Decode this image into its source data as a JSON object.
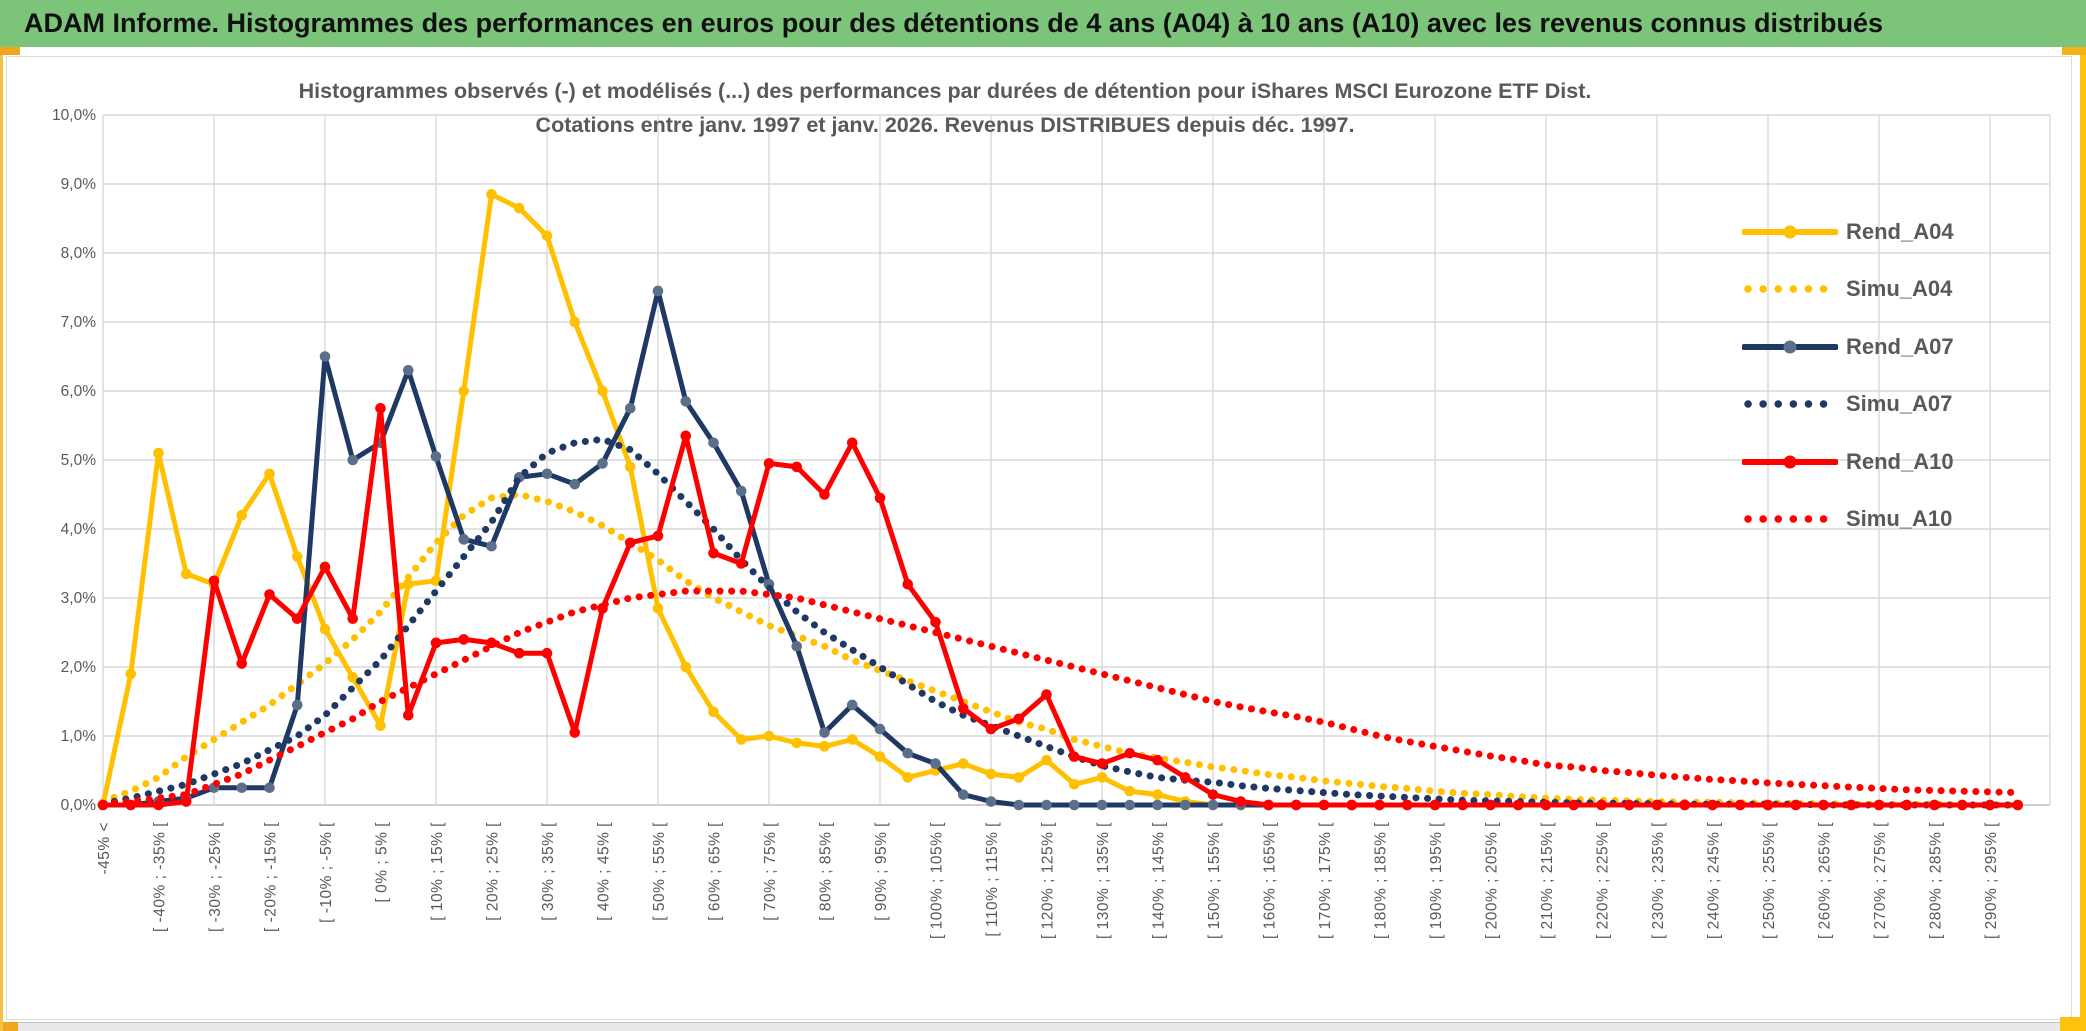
{
  "header": {
    "title": "ADAM Informe. Histogrammes des performances en euros pour des détentions de 4 ans (A04) à 10 ans (A10) avec les revenus connus distribués"
  },
  "colors": {
    "header_green": "#7cc47a",
    "accent_orange": "#efa51f",
    "accent_gold": "#fdc10e",
    "grid": "#d9d9d9",
    "axis_text": "#595959",
    "series_gold": "#FFC000",
    "series_navy": "#1F3864",
    "series_navy_marker": "#5b6e8a",
    "series_red": "#FF0000"
  },
  "chart_data": {
    "type": "line",
    "title_line1": "Histogrammes observés (-) et modélisés (...) des performances par durées de détention pour iShares MSCI Eurozone ETF Dist.",
    "title_line2": "Cotations entre janv. 1997 et janv. 2026. Revenus DISTRIBUES depuis déc. 1997.",
    "ylabel": "",
    "xlabel": "",
    "ylim": [
      0,
      10
    ],
    "grid": true,
    "legend_position": "right-inside",
    "y_tick_labels": [
      "10,0%",
      "9,0%",
      "8,0%",
      "7,0%",
      "6,0%",
      "5,0%",
      "4,0%",
      "3,0%",
      "2,0%",
      "1,0%",
      "0,0%"
    ],
    "categories": [
      "-45% <",
      "",
      "[ -40% ; -35% [",
      "",
      "[ -30% ; -25% [",
      "",
      "[ -20% ; -15% [",
      "",
      "[ -10% ; -5% [",
      "",
      "[ 0% ; 5% [",
      "",
      "[ 10% ; 15% [",
      "",
      "[ 20% ; 25% [",
      "",
      "[ 30% ; 35% [",
      "",
      "[ 40% ; 45% [",
      "",
      "[ 50% ; 55% [",
      "",
      "[ 60% ; 65% [",
      "",
      "[ 70% ; 75% [",
      "",
      "[ 80% ; 85% [",
      "",
      "[ 90% ; 95% [",
      "",
      "[ 100% ; 105% [",
      "",
      "[ 110% ; 115% [",
      "",
      "[ 120% ; 125% [",
      "",
      "[ 130% ; 135% [",
      "",
      "[ 140% ; 145% [",
      "",
      "[ 150% ; 155% [",
      "",
      "[ 160% ; 165% [",
      "",
      "[ 170% ; 175% [",
      "",
      "[ 180% ; 185% [",
      "",
      "[ 190% ; 195% [",
      "",
      "[ 200% ; 205% [",
      "",
      "[ 210% ; 215% [",
      "",
      "[ 220% ; 225% [",
      "",
      "[ 230% ; 235% [",
      "",
      "[ 240% ; 245% [",
      "",
      "[ 250% ; 255% [",
      "",
      "[ 260% ; 265% [",
      "",
      "[ 270% ; 275% [",
      "",
      "[ 280% ; 285% [",
      "",
      "[ 290% ; 295% [",
      ""
    ],
    "series": [
      {
        "name": "Rend_A04",
        "color": "#FFC000",
        "style": "solid",
        "marker": true,
        "marker_color": "#FFC000",
        "values": [
          0,
          1.9,
          5.1,
          3.35,
          3.2,
          4.2,
          4.8,
          3.6,
          2.55,
          1.85,
          1.15,
          3.2,
          3.25,
          6.0,
          8.85,
          8.65,
          8.25,
          7.0,
          6.0,
          4.9,
          2.85,
          2.0,
          1.35,
          0.95,
          1.0,
          0.9,
          0.85,
          0.95,
          0.7,
          0.4,
          0.5,
          0.6,
          0.45,
          0.4,
          0.65,
          0.3,
          0.4,
          0.2,
          0.15,
          0.05,
          0,
          0,
          0,
          0,
          0,
          0,
          0,
          0,
          0,
          0,
          0,
          0,
          0,
          0,
          0,
          0,
          0,
          0,
          0,
          0,
          0,
          0,
          0,
          0,
          0,
          0,
          0,
          0,
          0,
          0
        ]
      },
      {
        "name": "Simu_A04",
        "color": "#FFC000",
        "style": "dotted",
        "marker": false,
        "marker_color": "#FFC000",
        "values": [
          0.05,
          0.2,
          0.4,
          0.7,
          0.95,
          1.2,
          1.45,
          1.75,
          2.05,
          2.4,
          2.8,
          3.3,
          3.8,
          4.2,
          4.45,
          4.5,
          4.4,
          4.25,
          4.05,
          3.8,
          3.55,
          3.25,
          3.0,
          2.8,
          2.6,
          2.45,
          2.3,
          2.1,
          1.95,
          1.8,
          1.65,
          1.5,
          1.35,
          1.2,
          1.1,
          0.95,
          0.85,
          0.75,
          0.68,
          0.62,
          0.55,
          0.5,
          0.44,
          0.4,
          0.35,
          0.31,
          0.27,
          0.24,
          0.2,
          0.17,
          0.15,
          0.12,
          0.1,
          0.08,
          0.07,
          0.06,
          0.05,
          0.04,
          0.04,
          0.03,
          0.03,
          0.02,
          0.02,
          0.01,
          0.01,
          0.01,
          0.01,
          0,
          0,
          0
        ]
      },
      {
        "name": "Rend_A07",
        "color": "#1F3864",
        "style": "solid",
        "marker": true,
        "marker_color": "#5b6e8a",
        "values": [
          0,
          0,
          0.05,
          0.1,
          0.25,
          0.25,
          0.25,
          1.45,
          6.5,
          5.0,
          5.25,
          6.3,
          5.05,
          3.85,
          3.75,
          4.75,
          4.8,
          4.65,
          4.95,
          5.75,
          7.45,
          5.85,
          5.25,
          4.55,
          3.2,
          2.3,
          1.05,
          1.45,
          1.1,
          0.75,
          0.6,
          0.15,
          0.05,
          0,
          0,
          0,
          0,
          0,
          0,
          0,
          0,
          0,
          0,
          0,
          0,
          0,
          0,
          0,
          0,
          0,
          0,
          0,
          0,
          0,
          0,
          0,
          0,
          0,
          0,
          0,
          0,
          0,
          0,
          0,
          0,
          0,
          0,
          0,
          0,
          0
        ]
      },
      {
        "name": "Simu_A07",
        "color": "#1F3864",
        "style": "dotted",
        "marker": false,
        "marker_color": "#1F3864",
        "values": [
          0.02,
          0.1,
          0.2,
          0.3,
          0.45,
          0.6,
          0.8,
          1.0,
          1.3,
          1.7,
          2.1,
          2.6,
          3.1,
          3.6,
          4.1,
          4.75,
          5.1,
          5.25,
          5.3,
          5.15,
          4.8,
          4.4,
          4.0,
          3.55,
          3.15,
          2.8,
          2.5,
          2.25,
          2.0,
          1.75,
          1.5,
          1.3,
          1.15,
          1.0,
          0.85,
          0.7,
          0.57,
          0.48,
          0.4,
          0.36,
          0.33,
          0.28,
          0.24,
          0.21,
          0.18,
          0.15,
          0.13,
          0.11,
          0.09,
          0.07,
          0.06,
          0.05,
          0.04,
          0.03,
          0.03,
          0.02,
          0.02,
          0.01,
          0.01,
          0.01,
          0.01,
          0.01,
          0,
          0,
          0,
          0,
          0,
          0,
          0,
          0
        ]
      },
      {
        "name": "Rend_A10",
        "color": "#FF0000",
        "style": "solid",
        "marker": true,
        "marker_color": "#FF0000",
        "values": [
          0,
          0,
          0,
          0.05,
          3.25,
          2.05,
          3.05,
          2.7,
          3.45,
          2.7,
          5.75,
          1.3,
          2.35,
          2.4,
          2.35,
          2.2,
          2.2,
          1.05,
          2.85,
          3.8,
          3.9,
          5.35,
          3.65,
          3.5,
          4.95,
          4.9,
          4.5,
          5.25,
          4.45,
          3.2,
          2.65,
          1.4,
          1.1,
          1.25,
          1.6,
          0.7,
          0.6,
          0.75,
          0.65,
          0.4,
          0.15,
          0.05,
          0,
          0,
          0,
          0,
          0,
          0,
          0,
          0,
          0,
          0,
          0,
          0,
          0,
          0,
          0,
          0,
          0,
          0,
          0,
          0,
          0,
          0,
          0,
          0,
          0,
          0,
          0,
          0
        ]
      },
      {
        "name": "Simu_A10",
        "color": "#FF0000",
        "style": "dotted",
        "marker": false,
        "marker_color": "#FF0000",
        "values": [
          0.02,
          0.05,
          0.1,
          0.15,
          0.3,
          0.45,
          0.65,
          0.85,
          1.05,
          1.25,
          1.5,
          1.7,
          1.9,
          2.1,
          2.3,
          2.5,
          2.65,
          2.8,
          2.9,
          3.0,
          3.05,
          3.1,
          3.1,
          3.1,
          3.05,
          3.0,
          2.9,
          2.8,
          2.7,
          2.6,
          2.5,
          2.4,
          2.3,
          2.2,
          2.1,
          2.0,
          1.9,
          1.8,
          1.7,
          1.6,
          1.5,
          1.42,
          1.35,
          1.28,
          1.2,
          1.1,
          1.0,
          0.92,
          0.85,
          0.78,
          0.71,
          0.65,
          0.58,
          0.55,
          0.5,
          0.47,
          0.43,
          0.4,
          0.37,
          0.35,
          0.32,
          0.3,
          0.28,
          0.26,
          0.24,
          0.22,
          0.21,
          0.2,
          0.19,
          0.18
        ]
      }
    ]
  }
}
